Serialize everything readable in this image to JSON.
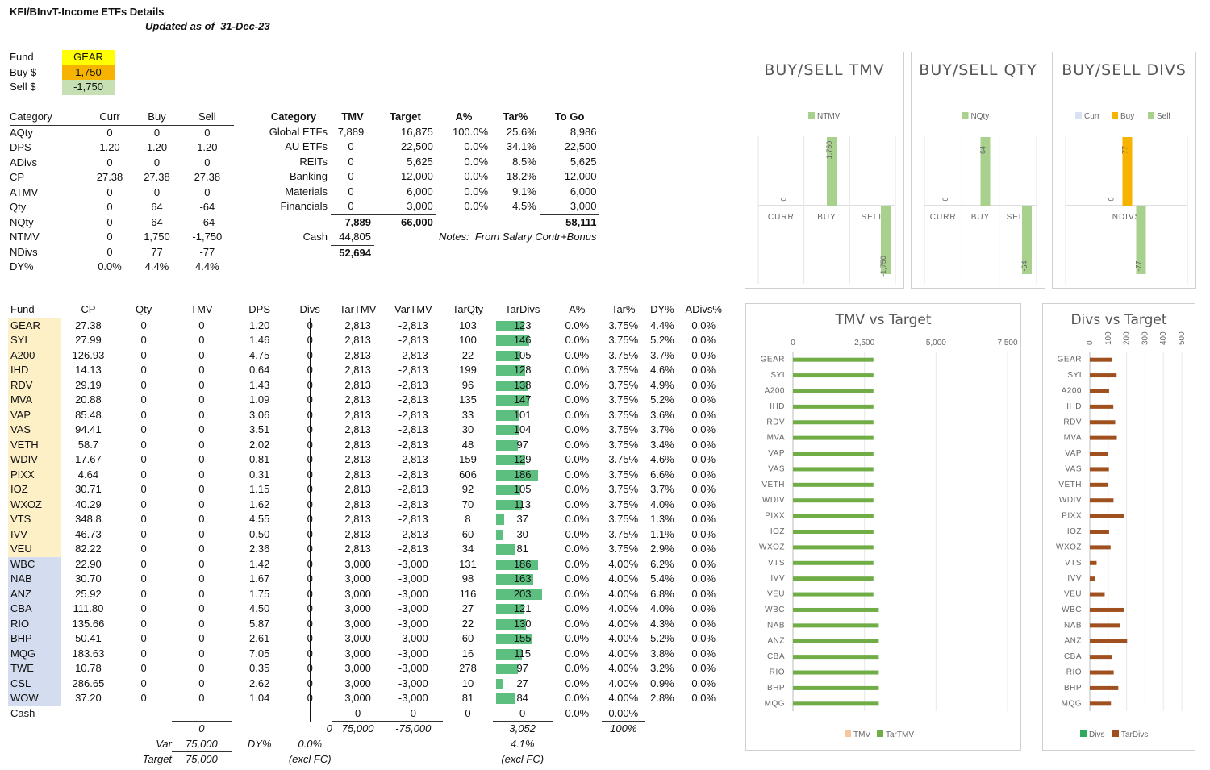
{
  "header": {
    "title": "KFI/BInvT-Income ETFs Details",
    "updated_label": "Updated as of",
    "updated_date": "31-Dec-23"
  },
  "inputs": {
    "fund_label": "Fund",
    "fund_value": "GEAR",
    "buy_label": "Buy $",
    "buy_value": "1,750",
    "sell_label": "Sell $",
    "sell_value": "-1,750"
  },
  "colors": {
    "yellow": "#ffff00",
    "orange": "#f6b400",
    "green_cell": "#c6e0b4",
    "bar_green": "#5cbf80",
    "bar_lightgreen": "#a9d18e",
    "bar_brown": "#a0501e",
    "fund1_bg": "#fdefc6",
    "fund2_bg": "#d4dcef"
  },
  "summary": {
    "headers": [
      "Category",
      "Curr",
      "Buy",
      "Sell"
    ],
    "rows": [
      [
        "AQty",
        "0",
        "0",
        "0"
      ],
      [
        "DPS",
        "1.20",
        "1.20",
        "1.20"
      ],
      [
        "ADivs",
        "0",
        "0",
        "0"
      ],
      [
        "CP",
        "27.38",
        "27.38",
        "27.38"
      ],
      [
        "ATMV",
        "0",
        "0",
        "0"
      ],
      [
        "Qty",
        "0",
        "64",
        "-64"
      ],
      [
        "NQty",
        "0",
        "64",
        "-64"
      ],
      [
        "NTMV",
        "0",
        "1,750",
        "-1,750"
      ],
      [
        "NDivs",
        "0",
        "77",
        "-77"
      ],
      [
        "DY%",
        "0.0%",
        "4.4%",
        "4.4%"
      ]
    ]
  },
  "alloc": {
    "headers": [
      "Category",
      "TMV",
      "Target",
      "A%",
      "Tar%",
      "To Go"
    ],
    "rows": [
      [
        "Global ETFs",
        "7,889",
        "16,875",
        "100.0%",
        "25.6%",
        "8,986"
      ],
      [
        "AU ETFs",
        "0",
        "22,500",
        "0.0%",
        "34.1%",
        "22,500"
      ],
      [
        "REITs",
        "0",
        "5,625",
        "0.0%",
        "8.5%",
        "5,625"
      ],
      [
        "Banking",
        "0",
        "12,000",
        "0.0%",
        "18.2%",
        "12,000"
      ],
      [
        "Materials",
        "0",
        "6,000",
        "0.0%",
        "9.1%",
        "6,000"
      ],
      [
        "Financials",
        "0",
        "3,000",
        "0.0%",
        "4.5%",
        "3,000"
      ]
    ],
    "total_tmv": "7,889",
    "total_target": "66,000",
    "total_togo": "58,111",
    "cash_label": "Cash",
    "cash_value": "44,805",
    "grand_total": "52,694",
    "notes_label": "Notes:",
    "notes_text": "From Salary Contr+Bonus"
  },
  "main": {
    "headers": [
      "Fund",
      "CP",
      "Qty",
      "TMV",
      "DPS",
      "Divs",
      "TarTMV",
      "VarTMV",
      "TarQty",
      "TarDivs",
      "A%",
      "Tar%",
      "DY%",
      "ADivs%"
    ],
    "rows": [
      {
        "fund": "GEAR",
        "cp": "27.38",
        "qty": "0",
        "tmv": "0",
        "dps": "1.20",
        "divs": "0",
        "tartmv": "2,813",
        "vartmv": "-2,813",
        "tarqty": "103",
        "tardivs": 123,
        "a": "0.0%",
        "tar": "3.75%",
        "dy": "4.4%",
        "adivs": "0.0%",
        "g": 1
      },
      {
        "fund": "SYI",
        "cp": "27.99",
        "qty": "0",
        "tmv": "0",
        "dps": "1.46",
        "divs": "0",
        "tartmv": "2,813",
        "vartmv": "-2,813",
        "tarqty": "100",
        "tardivs": 146,
        "a": "0.0%",
        "tar": "3.75%",
        "dy": "5.2%",
        "adivs": "0.0%",
        "g": 1
      },
      {
        "fund": "A200",
        "cp": "126.93",
        "qty": "0",
        "tmv": "0",
        "dps": "4.75",
        "divs": "0",
        "tartmv": "2,813",
        "vartmv": "-2,813",
        "tarqty": "22",
        "tardivs": 105,
        "a": "0.0%",
        "tar": "3.75%",
        "dy": "3.7%",
        "adivs": "0.0%",
        "g": 1
      },
      {
        "fund": "IHD",
        "cp": "14.13",
        "qty": "0",
        "tmv": "0",
        "dps": "0.64",
        "divs": "0",
        "tartmv": "2,813",
        "vartmv": "-2,813",
        "tarqty": "199",
        "tardivs": 128,
        "a": "0.0%",
        "tar": "3.75%",
        "dy": "4.6%",
        "adivs": "0.0%",
        "g": 1
      },
      {
        "fund": "RDV",
        "cp": "29.19",
        "qty": "0",
        "tmv": "0",
        "dps": "1.43",
        "divs": "0",
        "tartmv": "2,813",
        "vartmv": "-2,813",
        "tarqty": "96",
        "tardivs": 138,
        "a": "0.0%",
        "tar": "3.75%",
        "dy": "4.9%",
        "adivs": "0.0%",
        "g": 1
      },
      {
        "fund": "MVA",
        "cp": "20.88",
        "qty": "0",
        "tmv": "0",
        "dps": "1.09",
        "divs": "0",
        "tartmv": "2,813",
        "vartmv": "-2,813",
        "tarqty": "135",
        "tardivs": 147,
        "a": "0.0%",
        "tar": "3.75%",
        "dy": "5.2%",
        "adivs": "0.0%",
        "g": 1
      },
      {
        "fund": "VAP",
        "cp": "85.48",
        "qty": "0",
        "tmv": "0",
        "dps": "3.06",
        "divs": "0",
        "tartmv": "2,813",
        "vartmv": "-2,813",
        "tarqty": "33",
        "tardivs": 101,
        "a": "0.0%",
        "tar": "3.75%",
        "dy": "3.6%",
        "adivs": "0.0%",
        "g": 1
      },
      {
        "fund": "VAS",
        "cp": "94.41",
        "qty": "0",
        "tmv": "0",
        "dps": "3.51",
        "divs": "0",
        "tartmv": "2,813",
        "vartmv": "-2,813",
        "tarqty": "30",
        "tardivs": 104,
        "a": "0.0%",
        "tar": "3.75%",
        "dy": "3.7%",
        "adivs": "0.0%",
        "g": 1
      },
      {
        "fund": "VETH",
        "cp": "58.7",
        "qty": "0",
        "tmv": "0",
        "dps": "2.02",
        "divs": "0",
        "tartmv": "2,813",
        "vartmv": "-2,813",
        "tarqty": "48",
        "tardivs": 97,
        "a": "0.0%",
        "tar": "3.75%",
        "dy": "3.4%",
        "adivs": "0.0%",
        "g": 1
      },
      {
        "fund": "WDIV",
        "cp": "17.67",
        "qty": "0",
        "tmv": "0",
        "dps": "0.81",
        "divs": "0",
        "tartmv": "2,813",
        "vartmv": "-2,813",
        "tarqty": "159",
        "tardivs": 129,
        "a": "0.0%",
        "tar": "3.75%",
        "dy": "4.6%",
        "adivs": "0.0%",
        "g": 1
      },
      {
        "fund": "PIXX",
        "cp": "4.64",
        "qty": "0",
        "tmv": "0",
        "dps": "0.31",
        "divs": "0",
        "tartmv": "2,813",
        "vartmv": "-2,813",
        "tarqty": "606",
        "tardivs": 186,
        "a": "0.0%",
        "tar": "3.75%",
        "dy": "6.6%",
        "adivs": "0.0%",
        "g": 1
      },
      {
        "fund": "IOZ",
        "cp": "30.71",
        "qty": "0",
        "tmv": "0",
        "dps": "1.15",
        "divs": "0",
        "tartmv": "2,813",
        "vartmv": "-2,813",
        "tarqty": "92",
        "tardivs": 105,
        "a": "0.0%",
        "tar": "3.75%",
        "dy": "3.7%",
        "adivs": "0.0%",
        "g": 1
      },
      {
        "fund": "WXOZ",
        "cp": "40.29",
        "qty": "0",
        "tmv": "0",
        "dps": "1.62",
        "divs": "0",
        "tartmv": "2,813",
        "vartmv": "-2,813",
        "tarqty": "70",
        "tardivs": 113,
        "a": "0.0%",
        "tar": "3.75%",
        "dy": "4.0%",
        "adivs": "0.0%",
        "g": 1
      },
      {
        "fund": "VTS",
        "cp": "348.8",
        "qty": "0",
        "tmv": "0",
        "dps": "4.55",
        "divs": "0",
        "tartmv": "2,813",
        "vartmv": "-2,813",
        "tarqty": "8",
        "tardivs": 37,
        "a": "0.0%",
        "tar": "3.75%",
        "dy": "1.3%",
        "adivs": "0.0%",
        "g": 1
      },
      {
        "fund": "IVV",
        "cp": "46.73",
        "qty": "0",
        "tmv": "0",
        "dps": "0.50",
        "divs": "0",
        "tartmv": "2,813",
        "vartmv": "-2,813",
        "tarqty": "60",
        "tardivs": 30,
        "a": "0.0%",
        "tar": "3.75%",
        "dy": "1.1%",
        "adivs": "0.0%",
        "g": 1
      },
      {
        "fund": "VEU",
        "cp": "82.22",
        "qty": "0",
        "tmv": "0",
        "dps": "2.36",
        "divs": "0",
        "tartmv": "2,813",
        "vartmv": "-2,813",
        "tarqty": "34",
        "tardivs": 81,
        "a": "0.0%",
        "tar": "3.75%",
        "dy": "2.9%",
        "adivs": "0.0%",
        "g": 1
      },
      {
        "fund": "WBC",
        "cp": "22.90",
        "qty": "0",
        "tmv": "0",
        "dps": "1.42",
        "divs": "0",
        "tartmv": "3,000",
        "vartmv": "-3,000",
        "tarqty": "131",
        "tardivs": 186,
        "a": "0.0%",
        "tar": "4.00%",
        "dy": "6.2%",
        "adivs": "0.0%",
        "g": 2
      },
      {
        "fund": "NAB",
        "cp": "30.70",
        "qty": "0",
        "tmv": "0",
        "dps": "1.67",
        "divs": "0",
        "tartmv": "3,000",
        "vartmv": "-3,000",
        "tarqty": "98",
        "tardivs": 163,
        "a": "0.0%",
        "tar": "4.00%",
        "dy": "5.4%",
        "adivs": "0.0%",
        "g": 2
      },
      {
        "fund": "ANZ",
        "cp": "25.92",
        "qty": "0",
        "tmv": "0",
        "dps": "1.75",
        "divs": "0",
        "tartmv": "3,000",
        "vartmv": "-3,000",
        "tarqty": "116",
        "tardivs": 203,
        "a": "0.0%",
        "tar": "4.00%",
        "dy": "6.8%",
        "adivs": "0.0%",
        "g": 2
      },
      {
        "fund": "CBA",
        "cp": "111.80",
        "qty": "0",
        "tmv": "0",
        "dps": "4.50",
        "divs": "0",
        "tartmv": "3,000",
        "vartmv": "-3,000",
        "tarqty": "27",
        "tardivs": 121,
        "a": "0.0%",
        "tar": "4.00%",
        "dy": "4.0%",
        "adivs": "0.0%",
        "g": 2
      },
      {
        "fund": "RIO",
        "cp": "135.66",
        "qty": "0",
        "tmv": "0",
        "dps": "5.87",
        "divs": "0",
        "tartmv": "3,000",
        "vartmv": "-3,000",
        "tarqty": "22",
        "tardivs": 130,
        "a": "0.0%",
        "tar": "4.00%",
        "dy": "4.3%",
        "adivs": "0.0%",
        "g": 2
      },
      {
        "fund": "BHP",
        "cp": "50.41",
        "qty": "0",
        "tmv": "0",
        "dps": "2.61",
        "divs": "0",
        "tartmv": "3,000",
        "vartmv": "-3,000",
        "tarqty": "60",
        "tardivs": 155,
        "a": "0.0%",
        "tar": "4.00%",
        "dy": "5.2%",
        "adivs": "0.0%",
        "g": 2
      },
      {
        "fund": "MQG",
        "cp": "183.63",
        "qty": "0",
        "tmv": "0",
        "dps": "7.05",
        "divs": "0",
        "tartmv": "3,000",
        "vartmv": "-3,000",
        "tarqty": "16",
        "tardivs": 115,
        "a": "0.0%",
        "tar": "4.00%",
        "dy": "3.8%",
        "adivs": "0.0%",
        "g": 2
      },
      {
        "fund": "TWE",
        "cp": "10.78",
        "qty": "0",
        "tmv": "0",
        "dps": "0.35",
        "divs": "0",
        "tartmv": "3,000",
        "vartmv": "-3,000",
        "tarqty": "278",
        "tardivs": 97,
        "a": "0.0%",
        "tar": "4.00%",
        "dy": "3.2%",
        "adivs": "0.0%",
        "g": 2
      },
      {
        "fund": "CSL",
        "cp": "286.65",
        "qty": "0",
        "tmv": "0",
        "dps": "2.62",
        "divs": "0",
        "tartmv": "3,000",
        "vartmv": "-3,000",
        "tarqty": "10",
        "tardivs": 27,
        "a": "0.0%",
        "tar": "4.00%",
        "dy": "0.9%",
        "adivs": "0.0%",
        "g": 2
      },
      {
        "fund": "WOW",
        "cp": "37.20",
        "qty": "0",
        "tmv": "0",
        "dps": "1.04",
        "divs": "0",
        "tartmv": "3,000",
        "vartmv": "-3,000",
        "tarqty": "81",
        "tardivs": 84,
        "a": "0.0%",
        "tar": "4.00%",
        "dy": "2.8%",
        "adivs": "0.0%",
        "g": 2
      }
    ],
    "cash_row": {
      "fund": "Cash",
      "cp": "",
      "qty": "",
      "tmv": "0",
      "dps": "-",
      "divs": "0",
      "tartmv": "0",
      "vartmv": "0",
      "tarqty": "0",
      "tardivs": "0",
      "a": "0.0%",
      "tar": "0.00%"
    },
    "totals": {
      "tmv": "0",
      "divs": "0",
      "tartmv": "75,000",
      "vartmv": "-75,000",
      "tardivs": "3,052",
      "tar": "100%"
    },
    "footer": {
      "var_label": "Var",
      "var_value": "75,000",
      "dy_label": "DY%",
      "dy_value": "0.0%",
      "dy_tar_value": "4.1%",
      "target_label": "Target",
      "target_value": "75,000",
      "excl1": "(excl FC)",
      "excl2": "(excl FC)"
    }
  },
  "chart_data": [
    {
      "type": "bar",
      "title": "BUY/SELL TMV",
      "categories": [
        "CURR",
        "BUY",
        "SELL"
      ],
      "series": [
        {
          "name": "NTMV",
          "values": [
            0,
            1750,
            -1750
          ]
        }
      ],
      "data_labels": [
        "0",
        "1,750",
        "-1,750"
      ]
    },
    {
      "type": "bar",
      "title": "BUY/SELL QTY",
      "categories": [
        "CURR",
        "BUY",
        "SELL"
      ],
      "series": [
        {
          "name": "NQty",
          "values": [
            0,
            64,
            -64
          ]
        }
      ],
      "data_labels": [
        "0",
        "64",
        "-64"
      ]
    },
    {
      "type": "bar",
      "title": "BUY/SELL DIVS",
      "categories": [
        "NDIVS"
      ],
      "series": [
        {
          "name": "Curr",
          "values": [
            0
          ]
        },
        {
          "name": "Buy",
          "values": [
            77
          ]
        },
        {
          "name": "Sell",
          "values": [
            -77
          ]
        }
      ],
      "data_labels": [
        "0",
        "77",
        "-77"
      ]
    },
    {
      "type": "bar",
      "title": "TMV vs Target",
      "orientation": "horizontal",
      "categories": [
        "GEAR",
        "SYI",
        "A200",
        "IHD",
        "RDV",
        "MVA",
        "VAP",
        "VAS",
        "VETH",
        "WDIV",
        "PIXX",
        "IOZ",
        "WXOZ",
        "VTS",
        "IVV",
        "VEU",
        "WBC",
        "NAB",
        "ANZ",
        "CBA",
        "RIO",
        "BHP",
        "MQG"
      ],
      "series": [
        {
          "name": "TMV",
          "values": [
            0,
            0,
            0,
            0,
            0,
            0,
            0,
            0,
            0,
            0,
            0,
            0,
            0,
            0,
            0,
            0,
            0,
            0,
            0,
            0,
            0,
            0,
            0
          ]
        },
        {
          "name": "TarTMV",
          "values": [
            2813,
            2813,
            2813,
            2813,
            2813,
            2813,
            2813,
            2813,
            2813,
            2813,
            2813,
            2813,
            2813,
            2813,
            2813,
            2813,
            3000,
            3000,
            3000,
            3000,
            3000,
            3000,
            3000
          ]
        }
      ],
      "xlim": [
        0,
        7500
      ],
      "xticks": [
        "0",
        "2,500",
        "5,000",
        "7,500"
      ]
    },
    {
      "type": "bar",
      "title": "Divs vs Target",
      "orientation": "horizontal",
      "categories": [
        "GEAR",
        "SYI",
        "A200",
        "IHD",
        "RDV",
        "MVA",
        "VAP",
        "VAS",
        "VETH",
        "WDIV",
        "PIXX",
        "IOZ",
        "WXOZ",
        "VTS",
        "IVV",
        "VEU",
        "WBC",
        "NAB",
        "ANZ",
        "CBA",
        "RIO",
        "BHP",
        "MQG"
      ],
      "series": [
        {
          "name": "Divs",
          "values": [
            0,
            0,
            0,
            0,
            0,
            0,
            0,
            0,
            0,
            0,
            0,
            0,
            0,
            0,
            0,
            0,
            0,
            0,
            0,
            0,
            0,
            0,
            0
          ]
        },
        {
          "name": "TarDivs",
          "values": [
            123,
            146,
            105,
            128,
            138,
            147,
            101,
            104,
            97,
            129,
            186,
            105,
            113,
            37,
            30,
            81,
            186,
            163,
            203,
            121,
            130,
            155,
            115
          ]
        }
      ],
      "xlim": [
        0,
        500
      ],
      "xticks": [
        "0",
        "100",
        "200",
        "300",
        "400",
        "500"
      ]
    }
  ]
}
